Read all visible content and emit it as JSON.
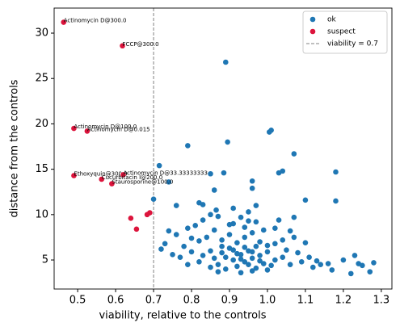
{
  "chart_data": {
    "type": "scatter",
    "xlabel": "viability, relative to the controls",
    "ylabel": "distance from the controls",
    "xlim": [
      0.438,
      1.328
    ],
    "ylim": [
      1.8,
      32.76
    ],
    "xticks": [
      0.5,
      0.6,
      0.7,
      0.8,
      0.9,
      {
        "value": 1,
        "label": "1.0"
      },
      1.1,
      1.2,
      1.3
    ],
    "yticks": [
      5,
      10,
      15,
      20,
      25,
      30
    ],
    "legend": "upper right",
    "vline": {
      "x": 0.7,
      "label": "viability = 0.7",
      "color": "#808080"
    },
    "series": [
      {
        "name": "ok",
        "color": "#1f77b4",
        "x": [
          0.89,
          0.895,
          0.79,
          1.005,
          1.01,
          1.07,
          1.18,
          1.18,
          0.715,
          0.85,
          0.885,
          0.96,
          0.96,
          1.03,
          1.04,
          0.74,
          0.86,
          0.7,
          0.83,
          0.97,
          1.1,
          0.76,
          0.82,
          0.91,
          0.95,
          0.865,
          0.85,
          0.93,
          0.95,
          0.79,
          0.74,
          0.76,
          0.73,
          0.72,
          0.8,
          0.82,
          1.2,
          1.22,
          1.24,
          1.25,
          1.28,
          1.27,
          1.23,
          1.16,
          1.17,
          1.14,
          1.13,
          1.12,
          1.11,
          1.09,
          1.08,
          1.1,
          1.07,
          1.06,
          1.02,
          1.04,
          1.05,
          1.03,
          1.07,
          0.85,
          0.86,
          0.87,
          0.88,
          0.89,
          0.9,
          0.91,
          0.92,
          0.93,
          0.94,
          0.95,
          0.96,
          0.97,
          0.98,
          0.99,
          1.0,
          1.01,
          1.02,
          0.88,
          0.9,
          0.92,
          0.94,
          0.96,
          0.98,
          1.0,
          0.84,
          0.83,
          0.82,
          0.8,
          0.78,
          0.77,
          0.81,
          0.86,
          0.9,
          0.94,
          0.97,
          0.99,
          0.87,
          0.93,
          0.96,
          1.0,
          0.91,
          0.95,
          0.97,
          0.93,
          0.89,
          0.85,
          0.79,
          0.75,
          1.04,
          1.06,
          0.98,
          0.92,
          0.94,
          0.96,
          0.88,
          1.02,
          0.83,
          0.87,
          0.91
        ],
        "y": [
          26.8,
          18.0,
          17.6,
          19.1,
          19.3,
          16.7,
          14.7,
          11.5,
          15.4,
          14.5,
          14.6,
          13.7,
          12.9,
          14.6,
          14.8,
          13.6,
          12.7,
          11.7,
          11.1,
          11.0,
          11.6,
          11.0,
          11.3,
          10.7,
          10.3,
          10.5,
          10.0,
          9.7,
          9.3,
          8.5,
          8.2,
          7.8,
          6.8,
          6.2,
          7.4,
          7.1,
          5.0,
          3.5,
          4.6,
          4.4,
          4.7,
          3.7,
          5.5,
          4.6,
          3.9,
          4.5,
          4.9,
          4.2,
          5.3,
          4.8,
          5.8,
          6.9,
          7.5,
          8.2,
          8.5,
          7.2,
          6.1,
          9.4,
          9.7,
          6.0,
          5.2,
          4.5,
          5.8,
          4.0,
          6.3,
          5.0,
          4.3,
          5.6,
          4.8,
          6.0,
          5.2,
          4.1,
          5.5,
          4.6,
          5.9,
          4.4,
          5.0,
          7.2,
          7.8,
          6.9,
          7.5,
          8.0,
          7.0,
          6.6,
          7.5,
          5.5,
          4.8,
          5.9,
          6.5,
          5.3,
          8.8,
          8.3,
          8.9,
          8.6,
          9.2,
          8.3,
          3.7,
          3.6,
          3.8,
          3.9,
          6.1,
          4.5,
          6.5,
          5.1,
          5.3,
          4.2,
          4.5,
          5.6,
          5.3,
          4.5,
          4.9,
          5.7,
          6.4,
          5.9,
          6.5,
          6.8,
          9.4,
          9.8,
          9.0
        ]
      },
      {
        "name": "suspect",
        "color": "#dc143c",
        "x": [
          0.463,
          0.618,
          0.49,
          0.525,
          0.49,
          0.62,
          0.563,
          0.59,
          0.64,
          0.655,
          0.683,
          0.69
        ],
        "y": [
          31.2,
          28.6,
          19.5,
          19.2,
          14.3,
          14.4,
          13.9,
          13.4,
          9.6,
          8.4,
          10.0,
          10.2
        ],
        "point_labels": [
          "Actinomycin D@300.0",
          "FCCP@300.0",
          "Actinomycin D@100.0",
          "Actinomycin D@0.015",
          "Ethoxyquin@300.0",
          "Actinomycin D@33.33333333",
          "Cucurbitacin I@200.0",
          "Staurosporine@100.0",
          null,
          null,
          null,
          null
        ]
      }
    ]
  }
}
